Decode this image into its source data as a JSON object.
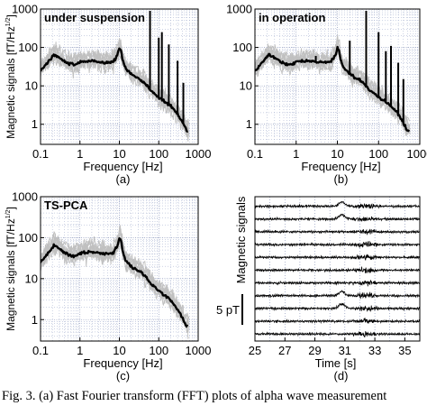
{
  "figure": {
    "caption": "Fig. 3. (a) Fast Fourier transform (FFT) plots of alpha wave measurement"
  },
  "chart_data": [
    {
      "type": "line",
      "panel_label": "(a)",
      "title": "under suspension",
      "xlabel": "Frequency [Hz]",
      "ylabel": "Magnetic signals [fT/Hz1/2]",
      "x_scale": "log",
      "y_scale": "log",
      "xlim": [
        0.1,
        1000
      ],
      "ylim": [
        0.3,
        1000
      ],
      "x_ticks": [
        0.1,
        1,
        10,
        100,
        1000
      ],
      "x_tick_labels": [
        "0.1",
        "1",
        "10",
        "100",
        "1000"
      ],
      "y_ticks": [
        1,
        10,
        100,
        1000
      ],
      "y_tick_labels": [
        "1",
        "10",
        "100",
        "1000"
      ],
      "grid": true,
      "series": [
        {
          "role": "channels",
          "color": "#c0c0c0",
          "x": [
            0.1,
            0.15,
            0.22,
            0.3,
            0.45,
            0.7,
            1,
            2,
            4,
            7,
            9,
            10,
            11,
            12,
            14,
            20,
            40,
            60,
            100,
            200,
            300,
            400,
            500
          ],
          "y": [
            28,
            45,
            75,
            60,
            42,
            38,
            45,
            50,
            42,
            45,
            72,
            110,
            95,
            55,
            33,
            22,
            15,
            9,
            5.5,
            3.2,
            2,
            1.3,
            0.8
          ]
        },
        {
          "role": "average",
          "color": "#000000",
          "x": [
            0.1,
            0.15,
            0.22,
            0.3,
            0.45,
            0.7,
            1,
            2,
            4,
            7,
            9,
            10,
            11,
            12,
            14,
            20,
            40,
            60,
            100,
            200,
            300,
            400,
            500
          ],
          "y": [
            25,
            40,
            65,
            55,
            40,
            35,
            42,
            45,
            40,
            42,
            65,
            95,
            85,
            50,
            30,
            20,
            13,
            8,
            5,
            3,
            1.8,
            1.1,
            0.7
          ]
        }
      ],
      "peaks": [
        {
          "x": 60,
          "y": 900
        },
        {
          "x": 100,
          "y": 180
        },
        {
          "x": 120,
          "y": 250
        },
        {
          "x": 180,
          "y": 120
        },
        {
          "x": 300,
          "y": 45
        },
        {
          "x": 420,
          "y": 12
        }
      ]
    },
    {
      "type": "line",
      "panel_label": "(b)",
      "title": "in operation",
      "xlabel": "Frequency [Hz]",
      "ylabel": "",
      "x_scale": "log",
      "y_scale": "log",
      "xlim": [
        0.1,
        1000
      ],
      "ylim": [
        0.3,
        1000
      ],
      "x_ticks": [
        0.1,
        1,
        10,
        100,
        1000
      ],
      "x_tick_labels": [
        "0.1",
        "1",
        "10",
        "100",
        "1000"
      ],
      "y_ticks": [
        1,
        10,
        100,
        1000
      ],
      "y_tick_labels": [
        "1",
        "10",
        "100",
        "1000"
      ],
      "grid": true,
      "series": [
        {
          "role": "channels",
          "color": "#c0c0c0",
          "x": [
            0.1,
            0.15,
            0.22,
            0.3,
            0.45,
            0.7,
            1,
            2,
            4,
            7,
            9,
            10,
            11,
            12,
            14,
            20,
            40,
            60,
            100,
            200,
            300,
            400,
            500
          ],
          "y": [
            28,
            45,
            75,
            60,
            42,
            38,
            45,
            50,
            42,
            45,
            72,
            110,
            95,
            55,
            33,
            22,
            15,
            9,
            5.5,
            3.2,
            2,
            1.3,
            0.8
          ]
        },
        {
          "role": "average",
          "color": "#000000",
          "x": [
            0.1,
            0.15,
            0.22,
            0.3,
            0.45,
            0.7,
            1,
            2,
            4,
            7,
            9,
            10,
            11,
            12,
            14,
            20,
            40,
            60,
            100,
            200,
            300,
            400,
            500
          ],
          "y": [
            25,
            40,
            65,
            55,
            40,
            35,
            42,
            45,
            40,
            42,
            65,
            95,
            85,
            50,
            30,
            20,
            13,
            8,
            5,
            3,
            1.8,
            1.1,
            0.7
          ]
        }
      ],
      "peaks": [
        {
          "x": 3,
          "y": 60
        },
        {
          "x": 20,
          "y": 150
        },
        {
          "x": 50,
          "y": 900
        },
        {
          "x": 100,
          "y": 250
        },
        {
          "x": 150,
          "y": 80
        },
        {
          "x": 200,
          "y": 110
        },
        {
          "x": 300,
          "y": 40
        },
        {
          "x": 400,
          "y": 15
        }
      ]
    },
    {
      "type": "line",
      "panel_label": "(c)",
      "title": "TS-PCA",
      "xlabel": "Frequency [Hz]",
      "ylabel": "Magnetic signals [fT/Hz1/2]",
      "x_scale": "log",
      "y_scale": "log",
      "xlim": [
        0.1,
        1000
      ],
      "ylim": [
        0.3,
        1000
      ],
      "x_ticks": [
        0.1,
        1,
        10,
        100,
        1000
      ],
      "x_tick_labels": [
        "0.1",
        "1",
        "10",
        "100",
        "1000"
      ],
      "y_ticks": [
        1,
        10,
        100,
        1000
      ],
      "y_tick_labels": [
        "1",
        "10",
        "100",
        "1000"
      ],
      "grid": true,
      "series": [
        {
          "role": "channels",
          "color": "#c0c0c0",
          "x": [
            0.1,
            0.15,
            0.22,
            0.3,
            0.45,
            0.7,
            1,
            2,
            4,
            7,
            9,
            10,
            11,
            12,
            14,
            20,
            40,
            60,
            100,
            200,
            300,
            400,
            500
          ],
          "y": [
            28,
            45,
            75,
            60,
            42,
            38,
            45,
            50,
            42,
            45,
            72,
            110,
            95,
            55,
            33,
            22,
            15,
            9,
            5.5,
            3.2,
            2,
            1.3,
            0.8
          ]
        },
        {
          "role": "average",
          "color": "#000000",
          "x": [
            0.1,
            0.15,
            0.22,
            0.3,
            0.45,
            0.7,
            1,
            2,
            4,
            7,
            9,
            10,
            11,
            12,
            14,
            20,
            40,
            60,
            100,
            200,
            300,
            400,
            500
          ],
          "y": [
            25,
            40,
            65,
            55,
            40,
            35,
            42,
            45,
            40,
            42,
            65,
            95,
            85,
            50,
            30,
            20,
            13,
            8,
            5,
            3,
            1.8,
            1.1,
            0.7
          ]
        }
      ],
      "peaks": []
    },
    {
      "type": "line",
      "panel_label": "(d)",
      "title": "",
      "xlabel": "Time [s]",
      "ylabel": "Magnetic signals",
      "xlim": [
        25,
        36
      ],
      "x_ticks": [
        25,
        27,
        29,
        31,
        33,
        35
      ],
      "x_tick_labels": [
        "25",
        "27",
        "29",
        "31",
        "33",
        "35"
      ],
      "grid": true,
      "channel_count": 11,
      "scale_bar": {
        "label": "5 pT",
        "value": 5
      },
      "events": [
        {
          "x": 30.8,
          "amplitude": 2.2,
          "channels": [
            0,
            1,
            7,
            8
          ]
        },
        {
          "x": 32.4,
          "amplitude": 1.4,
          "channels": [
            0,
            1,
            2,
            3,
            4,
            5,
            6,
            7,
            8,
            9,
            10
          ]
        }
      ]
    }
  ]
}
